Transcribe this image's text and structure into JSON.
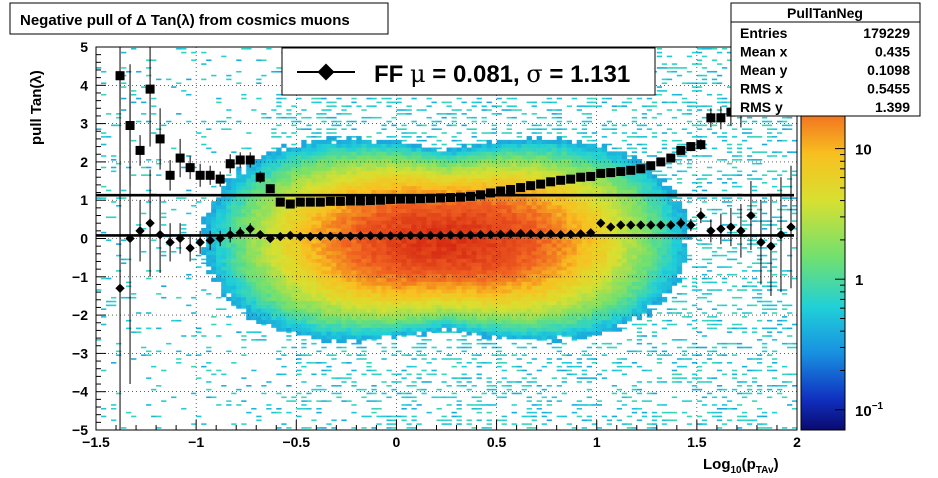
{
  "chart_data": {
    "type": "heatmap",
    "title": "Negative pull of Δ Tan(λ) from cosmics muons",
    "xlabel": "Log",
    "xlabel_sub": "10",
    "xlabel_paren": "(p",
    "xlabel_sub2": "TAv",
    "xlabel_close": ")",
    "ylabel": "pull Tan(λ)",
    "xlim": [
      -1.5,
      2
    ],
    "ylim": [
      -5,
      5
    ],
    "x_ticks": [
      {
        "value": -1.5,
        "label": "−1.5"
      },
      {
        "value": -1,
        "label": "−1"
      },
      {
        "value": -0.5,
        "label": "−0.5"
      },
      {
        "value": 0,
        "label": "0"
      },
      {
        "value": 0.5,
        "label": "0.5"
      },
      {
        "value": 1,
        "label": "1"
      },
      {
        "value": 1.5,
        "label": "1.5"
      },
      {
        "value": 2,
        "label": "2"
      }
    ],
    "y_ticks": [
      {
        "value": 5,
        "label": "5"
      },
      {
        "value": 4,
        "label": "4"
      },
      {
        "value": 3,
        "label": "3"
      },
      {
        "value": 2,
        "label": "2"
      },
      {
        "value": 1,
        "label": "1"
      },
      {
        "value": 0,
        "label": "0"
      },
      {
        "value": -1,
        "label": "−1"
      },
      {
        "value": -2,
        "label": "−2"
      },
      {
        "value": -3,
        "label": "−3"
      },
      {
        "value": -4,
        "label": "−4"
      },
      {
        "value": -5,
        "label": "−5"
      }
    ],
    "grid": true,
    "colorbar": {
      "scale": "log",
      "range": [
        0.07,
        60
      ],
      "ticks": [
        {
          "value": 10,
          "label": "10"
        },
        {
          "value": 1,
          "label": "1"
        },
        {
          "value": 0.1,
          "label": "10",
          "sup": "−1"
        }
      ]
    },
    "legend": {
      "label_prefix": "FF ",
      "mu_symbol": "μ",
      "mu_text": " =  0.081, ",
      "sigma_symbol": "σ",
      "sigma_text": " =   1.131",
      "placement": "top-center"
    },
    "fit_lines": [
      {
        "name": "mean",
        "y": 0.081
      },
      {
        "name": "sigma",
        "y": 1.131
      }
    ],
    "series": [
      {
        "name": "mean",
        "marker": "diamond",
        "points": [
          {
            "x": -1.38,
            "y": -1.3,
            "err": 5.5
          },
          {
            "x": -1.33,
            "y": 0.0,
            "err": 3.8
          },
          {
            "x": -1.28,
            "y": 0.2,
            "err": 0.8
          },
          {
            "x": -1.23,
            "y": 0.4,
            "err": 1.4
          },
          {
            "x": -1.18,
            "y": 0.1,
            "err": 1.0
          },
          {
            "x": -1.13,
            "y": -0.1,
            "err": 0.5
          },
          {
            "x": -1.08,
            "y": 0.0,
            "err": 0.4
          },
          {
            "x": -1.03,
            "y": -0.25,
            "err": 0.35
          },
          {
            "x": -0.98,
            "y": -0.1,
            "err": 0.3
          },
          {
            "x": -0.93,
            "y": -0.05,
            "err": 0.25
          },
          {
            "x": -0.88,
            "y": 0.0,
            "err": 0.2
          },
          {
            "x": -0.83,
            "y": 0.1,
            "err": 0.2
          },
          {
            "x": -0.78,
            "y": 0.15,
            "err": 0.15
          },
          {
            "x": -0.73,
            "y": 0.25,
            "err": 0.15
          },
          {
            "x": -0.68,
            "y": 0.1,
            "err": 0.1
          },
          {
            "x": -0.63,
            "y": 0.0,
            "err": 0.08
          },
          {
            "x": -0.58,
            "y": 0.05,
            "err": 0.06
          },
          {
            "x": -0.53,
            "y": 0.08,
            "err": 0.05
          },
          {
            "x": -0.48,
            "y": 0.05,
            "err": 0.04
          },
          {
            "x": -0.43,
            "y": 0.05,
            "err": 0.03
          },
          {
            "x": -0.38,
            "y": 0.06,
            "err": 0.03
          },
          {
            "x": -0.33,
            "y": 0.06,
            "err": 0.02
          },
          {
            "x": -0.28,
            "y": 0.06,
            "err": 0.02
          },
          {
            "x": -0.23,
            "y": 0.06,
            "err": 0.02
          },
          {
            "x": -0.18,
            "y": 0.07,
            "err": 0.02
          },
          {
            "x": -0.13,
            "y": 0.07,
            "err": 0.02
          },
          {
            "x": -0.08,
            "y": 0.07,
            "err": 0.02
          },
          {
            "x": -0.03,
            "y": 0.07,
            "err": 0.02
          },
          {
            "x": 0.02,
            "y": 0.07,
            "err": 0.02
          },
          {
            "x": 0.07,
            "y": 0.08,
            "err": 0.02
          },
          {
            "x": 0.12,
            "y": 0.08,
            "err": 0.02
          },
          {
            "x": 0.17,
            "y": 0.08,
            "err": 0.02
          },
          {
            "x": 0.22,
            "y": 0.08,
            "err": 0.02
          },
          {
            "x": 0.27,
            "y": 0.09,
            "err": 0.02
          },
          {
            "x": 0.32,
            "y": 0.09,
            "err": 0.02
          },
          {
            "x": 0.37,
            "y": 0.09,
            "err": 0.02
          },
          {
            "x": 0.42,
            "y": 0.1,
            "err": 0.02
          },
          {
            "x": 0.47,
            "y": 0.1,
            "err": 0.02
          },
          {
            "x": 0.52,
            "y": 0.11,
            "err": 0.02
          },
          {
            "x": 0.57,
            "y": 0.12,
            "err": 0.02
          },
          {
            "x": 0.62,
            "y": 0.13,
            "err": 0.03
          },
          {
            "x": 0.67,
            "y": 0.12,
            "err": 0.03
          },
          {
            "x": 0.72,
            "y": 0.1,
            "err": 0.03
          },
          {
            "x": 0.77,
            "y": 0.12,
            "err": 0.03
          },
          {
            "x": 0.82,
            "y": 0.1,
            "err": 0.03
          },
          {
            "x": 0.87,
            "y": 0.11,
            "err": 0.04
          },
          {
            "x": 0.92,
            "y": 0.12,
            "err": 0.04
          },
          {
            "x": 0.97,
            "y": 0.15,
            "err": 0.04
          },
          {
            "x": 1.02,
            "y": 0.4,
            "err": 0.05
          },
          {
            "x": 1.07,
            "y": 0.3,
            "err": 0.05
          },
          {
            "x": 1.12,
            "y": 0.35,
            "err": 0.06
          },
          {
            "x": 1.17,
            "y": 0.35,
            "err": 0.07
          },
          {
            "x": 1.22,
            "y": 0.35,
            "err": 0.08
          },
          {
            "x": 1.27,
            "y": 0.35,
            "err": 0.09
          },
          {
            "x": 1.32,
            "y": 0.35,
            "err": 0.1
          },
          {
            "x": 1.37,
            "y": 0.35,
            "err": 0.12
          },
          {
            "x": 1.42,
            "y": 0.4,
            "err": 0.14
          },
          {
            "x": 1.47,
            "y": 0.35,
            "err": 0.16
          },
          {
            "x": 1.52,
            "y": 0.6,
            "err": 0.2
          },
          {
            "x": 1.57,
            "y": 0.2,
            "err": 0.3
          },
          {
            "x": 1.62,
            "y": 0.25,
            "err": 0.4
          },
          {
            "x": 1.67,
            "y": 0.3,
            "err": 0.5
          },
          {
            "x": 1.72,
            "y": 0.2,
            "err": 0.7
          },
          {
            "x": 1.77,
            "y": 0.6,
            "err": 0.9
          },
          {
            "x": 1.82,
            "y": -0.1,
            "err": 1.1
          },
          {
            "x": 1.87,
            "y": -0.2,
            "err": 1.3
          },
          {
            "x": 1.92,
            "y": 0.1,
            "err": 1.5
          },
          {
            "x": 1.97,
            "y": 0.3,
            "err": 1.6
          }
        ]
      },
      {
        "name": "sigma",
        "marker": "square",
        "points": [
          {
            "x": -1.38,
            "y": 4.25,
            "err": 0.8
          },
          {
            "x": -1.33,
            "y": 2.95,
            "err": 1.6
          },
          {
            "x": -1.28,
            "y": 2.3,
            "err": 0.4
          },
          {
            "x": -1.23,
            "y": 3.9,
            "err": 1.5
          },
          {
            "x": -1.18,
            "y": 2.6,
            "err": 0.8
          },
          {
            "x": -1.13,
            "y": 1.65,
            "err": 0.4
          },
          {
            "x": -1.08,
            "y": 2.1,
            "err": 0.5
          },
          {
            "x": -1.03,
            "y": 1.85,
            "err": 0.3
          },
          {
            "x": -0.98,
            "y": 1.65,
            "err": 0.3
          },
          {
            "x": -0.93,
            "y": 1.65,
            "err": 0.25
          },
          {
            "x": -0.88,
            "y": 1.55,
            "err": 0.2
          },
          {
            "x": -0.83,
            "y": 1.95,
            "err": 0.25
          },
          {
            "x": -0.78,
            "y": 2.05,
            "err": 0.2
          },
          {
            "x": -0.73,
            "y": 2.05,
            "err": 0.2
          },
          {
            "x": -0.68,
            "y": 1.6,
            "err": 0.15
          },
          {
            "x": -0.63,
            "y": 1.3,
            "err": 0.1
          },
          {
            "x": -0.58,
            "y": 0.95,
            "err": 0.06
          },
          {
            "x": -0.53,
            "y": 0.9,
            "err": 0.05
          },
          {
            "x": -0.48,
            "y": 0.95,
            "err": 0.04
          },
          {
            "x": -0.43,
            "y": 0.95,
            "err": 0.03
          },
          {
            "x": -0.38,
            "y": 0.95,
            "err": 0.03
          },
          {
            "x": -0.33,
            "y": 0.97,
            "err": 0.02
          },
          {
            "x": -0.28,
            "y": 0.97,
            "err": 0.02
          },
          {
            "x": -0.23,
            "y": 0.98,
            "err": 0.02
          },
          {
            "x": -0.18,
            "y": 0.98,
            "err": 0.02
          },
          {
            "x": -0.13,
            "y": 0.99,
            "err": 0.02
          },
          {
            "x": -0.08,
            "y": 1.0,
            "err": 0.02
          },
          {
            "x": -0.03,
            "y": 1.02,
            "err": 0.02
          },
          {
            "x": 0.02,
            "y": 1.03,
            "err": 0.02
          },
          {
            "x": 0.07,
            "y": 1.03,
            "err": 0.02
          },
          {
            "x": 0.12,
            "y": 1.04,
            "err": 0.02
          },
          {
            "x": 0.17,
            "y": 1.05,
            "err": 0.02
          },
          {
            "x": 0.22,
            "y": 1.06,
            "err": 0.02
          },
          {
            "x": 0.27,
            "y": 1.07,
            "err": 0.02
          },
          {
            "x": 0.32,
            "y": 1.08,
            "err": 0.02
          },
          {
            "x": 0.37,
            "y": 1.1,
            "err": 0.02
          },
          {
            "x": 0.42,
            "y": 1.14,
            "err": 0.02
          },
          {
            "x": 0.47,
            "y": 1.19,
            "err": 0.02
          },
          {
            "x": 0.52,
            "y": 1.24,
            "err": 0.02
          },
          {
            "x": 0.57,
            "y": 1.28,
            "err": 0.02
          },
          {
            "x": 0.62,
            "y": 1.33,
            "err": 0.02
          },
          {
            "x": 0.67,
            "y": 1.38,
            "err": 0.03
          },
          {
            "x": 0.72,
            "y": 1.42,
            "err": 0.03
          },
          {
            "x": 0.77,
            "y": 1.48,
            "err": 0.03
          },
          {
            "x": 0.82,
            "y": 1.52,
            "err": 0.03
          },
          {
            "x": 0.87,
            "y": 1.55,
            "err": 0.03
          },
          {
            "x": 0.92,
            "y": 1.6,
            "err": 0.04
          },
          {
            "x": 0.97,
            "y": 1.62,
            "err": 0.04
          },
          {
            "x": 1.02,
            "y": 1.7,
            "err": 0.04
          },
          {
            "x": 1.07,
            "y": 1.72,
            "err": 0.05
          },
          {
            "x": 1.12,
            "y": 1.75,
            "err": 0.05
          },
          {
            "x": 1.17,
            "y": 1.78,
            "err": 0.06
          },
          {
            "x": 1.22,
            "y": 1.82,
            "err": 0.06
          },
          {
            "x": 1.27,
            "y": 1.9,
            "err": 0.07
          },
          {
            "x": 1.32,
            "y": 2.0,
            "err": 0.08
          },
          {
            "x": 1.37,
            "y": 2.1,
            "err": 0.09
          },
          {
            "x": 1.42,
            "y": 2.3,
            "err": 0.1
          },
          {
            "x": 1.47,
            "y": 2.4,
            "err": 0.12
          },
          {
            "x": 1.52,
            "y": 2.45,
            "err": 0.14
          },
          {
            "x": 1.57,
            "y": 3.15,
            "err": 0.25
          },
          {
            "x": 1.62,
            "y": 3.15,
            "err": 0.3
          },
          {
            "x": 1.67,
            "y": 3.3,
            "err": 0.35
          },
          {
            "x": 1.72,
            "y": 3.4,
            "err": 0.5
          },
          {
            "x": 1.77,
            "y": 4.05,
            "err": 0.7
          },
          {
            "x": 1.82,
            "y": 4.9,
            "err": 0.6
          }
        ]
      }
    ]
  },
  "stats": {
    "title": "PullTanNeg",
    "rows": [
      {
        "label": "Entries",
        "value": "179229"
      },
      {
        "label": "Mean x",
        "value": "0.435"
      },
      {
        "label": "Mean y",
        "value": "0.1098"
      },
      {
        "label": "RMS x",
        "value": "0.5455"
      },
      {
        "label": "RMS y",
        "value": "1.399"
      }
    ]
  }
}
